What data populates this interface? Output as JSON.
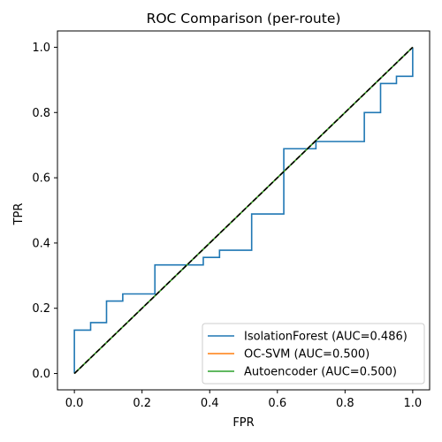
{
  "chart_data": {
    "type": "line",
    "title": "ROC Comparison (per-route)",
    "xlabel": "FPR",
    "ylabel": "TPR",
    "xlim": [
      -0.05,
      1.05
    ],
    "ylim": [
      -0.05,
      1.05
    ],
    "xticks": [
      0.0,
      0.2,
      0.4,
      0.6,
      0.8,
      1.0
    ],
    "yticks": [
      0.0,
      0.2,
      0.4,
      0.6,
      0.8,
      1.0
    ],
    "xtick_labels": [
      "0.0",
      "0.2",
      "0.4",
      "0.6",
      "0.8",
      "1.0"
    ],
    "ytick_labels": [
      "0.0",
      "0.2",
      "0.4",
      "0.6",
      "0.8",
      "1.0"
    ],
    "grid": false,
    "legend_position": "lower-right",
    "series": [
      {
        "name": "IsolationForest (AUC=0.486)",
        "color": "#1f77b4",
        "x": [
          0,
          0,
          0.048,
          0.048,
          0.095,
          0.095,
          0.143,
          0.143,
          0.238,
          0.238,
          0.381,
          0.381,
          0.429,
          0.429,
          0.524,
          0.524,
          0.619,
          0.619,
          0.714,
          0.714,
          0.857,
          0.857,
          0.905,
          0.905,
          0.952,
          0.952,
          1.0,
          1.0
        ],
        "y": [
          0,
          0.133,
          0.133,
          0.156,
          0.156,
          0.222,
          0.222,
          0.244,
          0.244,
          0.333,
          0.333,
          0.356,
          0.356,
          0.378,
          0.378,
          0.489,
          0.489,
          0.689,
          0.689,
          0.711,
          0.711,
          0.8,
          0.8,
          0.889,
          0.889,
          0.911,
          0.911,
          1.0
        ]
      },
      {
        "name": "OC-SVM (AUC=0.500)",
        "color": "#ff7f0e",
        "x": [
          0,
          1
        ],
        "y": [
          0,
          1
        ]
      },
      {
        "name": "Autoencoder (AUC=0.500)",
        "color": "#2ca02c",
        "x": [
          0,
          1
        ],
        "y": [
          0,
          1
        ]
      }
    ],
    "reference_line": {
      "style": "dashed",
      "color": "#000000",
      "x": [
        0,
        1
      ],
      "y": [
        0,
        1
      ]
    }
  }
}
